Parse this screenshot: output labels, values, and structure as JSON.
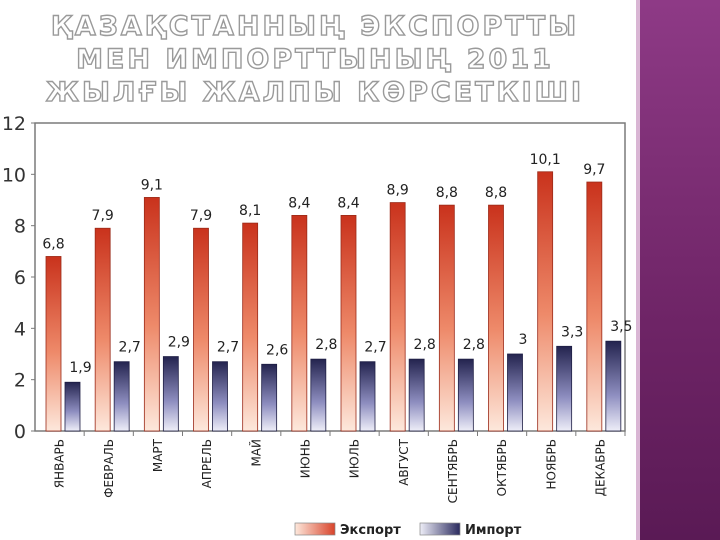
{
  "chart_data": {
    "type": "bar",
    "title": "ҚАЗАҚСТАННЫҢ ЭКСПОРТТЫ МЕН ИМПОРТТЫНЫҢ 2011 ЖЫЛҒЫ ЖАЛПЫ КӨРСЕТКІШІ",
    "categories": [
      "ЯНВАРЬ",
      "ФЕВРАЛЬ",
      "МАРТ",
      "АПРЕЛЬ",
      "МАЙ",
      "ИЮНЬ",
      "ИЮЛЬ",
      "АВГУСТ",
      "СЕНТЯБРЬ",
      "ОКТЯБРЬ",
      "НОЯБРЬ",
      "ДЕКАБРЬ"
    ],
    "series": [
      {
        "name": "Экспорт",
        "color": "#d8432a",
        "values": [
          6.8,
          7.9,
          9.1,
          7.9,
          8.1,
          8.4,
          8.4,
          8.9,
          8.8,
          8.8,
          10.1,
          9.7
        ],
        "labels": [
          "6,8",
          "7,9",
          "9,1",
          "7,9",
          "8,1",
          "8,4",
          "8,4",
          "8,9",
          "8,8",
          "8,8",
          "10,1",
          "9,7"
        ]
      },
      {
        "name": "Импорт",
        "color": "#3a3a6e",
        "values": [
          1.9,
          2.7,
          2.9,
          2.7,
          2.6,
          2.8,
          2.7,
          2.8,
          2.8,
          3.0,
          3.3,
          3.5
        ],
        "labels": [
          "1,9",
          "2,7",
          "2,9",
          "2,7",
          "2,6",
          "2,8",
          "2,7",
          "2,8",
          "2,8",
          "3",
          "3,3",
          "3,5"
        ]
      }
    ],
    "yticks": [
      "0",
      "2",
      "4",
      "6",
      "8",
      "10",
      "12"
    ],
    "ylim": [
      0,
      12
    ],
    "xlabel": "",
    "ylabel": "",
    "legend": "bottom",
    "grid": false
  }
}
